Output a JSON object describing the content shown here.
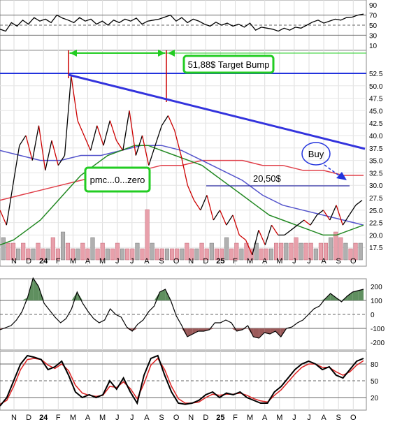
{
  "chart_data": [
    {
      "panel": "rsi",
      "type": "line",
      "y_ticks": [
        "90",
        "70",
        "50",
        "30",
        "10"
      ],
      "reference_lines": [
        70,
        50,
        30
      ],
      "ylim": [
        0,
        100
      ],
      "values": [
        42,
        38,
        55,
        48,
        60,
        52,
        65,
        58,
        62,
        55,
        70,
        64,
        60,
        55,
        65,
        58,
        62,
        52,
        58,
        50,
        60,
        55,
        62,
        58,
        64,
        52,
        58,
        60,
        62,
        66,
        70,
        58,
        65,
        55,
        62,
        58,
        52,
        48,
        56,
        50,
        54,
        48,
        52,
        46,
        54,
        40,
        46,
        44,
        42,
        38,
        44,
        40,
        46,
        44,
        50,
        56,
        60,
        54,
        58,
        62,
        60,
        65,
        66,
        70,
        72
      ]
    },
    {
      "panel": "price",
      "type": "line",
      "y_ticks": [
        "52.5",
        "50.0",
        "47.5",
        "45.0",
        "42.5",
        "40.0",
        "37.5",
        "35.0",
        "32.5",
        "30.0",
        "27.5",
        "25.0",
        "22.5",
        "20.0",
        "17.5"
      ],
      "ylim": [
        14,
        55
      ],
      "x_labels": [
        "N",
        "D",
        "24",
        "F",
        "M",
        "A",
        "M",
        "J",
        "J",
        "A",
        "S",
        "O",
        "N",
        "D",
        "25",
        "F",
        "M",
        "A",
        "M",
        "J",
        "J",
        "A",
        "S",
        "O"
      ],
      "price": [
        25,
        22,
        30,
        38,
        40,
        35,
        42,
        33,
        39,
        34,
        36,
        52,
        43,
        40,
        37,
        42,
        38,
        43,
        39,
        37,
        45,
        36,
        40,
        34,
        38,
        42,
        44,
        41,
        36,
        30,
        27,
        25,
        28,
        23,
        25,
        22,
        24,
        20,
        19,
        16,
        21,
        18,
        22,
        20,
        20,
        21,
        22,
        23,
        22,
        24,
        25,
        23,
        26,
        22,
        24,
        26,
        27
      ],
      "ma_short": [
        18,
        19,
        21,
        23,
        26,
        29,
        32,
        34,
        36,
        37,
        38,
        38,
        37,
        36,
        35,
        34,
        32,
        30,
        28,
        26,
        24,
        23,
        22,
        21,
        20,
        20,
        21,
        22
      ],
      "ma_mid": [
        37,
        36,
        35,
        35,
        36,
        36,
        37,
        38,
        38,
        37,
        35,
        33,
        31,
        28,
        26,
        25,
        24,
        23,
        22
      ],
      "ma_long": [
        27,
        28,
        29,
        30,
        31,
        32,
        33,
        33,
        34,
        34,
        35,
        35,
        35,
        34,
        34,
        33,
        33,
        32,
        32
      ],
      "volume": [
        4,
        3,
        3,
        2,
        3,
        2,
        2,
        3,
        2,
        2,
        4,
        2,
        5,
        3,
        2,
        2,
        3,
        2,
        4,
        2,
        3,
        2,
        2,
        3,
        2,
        2,
        2,
        3,
        2,
        9,
        3,
        2,
        2,
        2,
        2,
        2,
        2,
        3,
        2,
        2,
        3,
        2,
        3,
        2,
        2,
        4,
        2,
        3,
        2,
        3,
        2,
        3,
        2,
        2,
        2,
        3,
        3,
        3,
        3,
        4,
        3,
        3,
        3,
        2,
        3,
        3,
        4,
        5,
        4,
        3,
        2,
        3,
        3
      ],
      "annotations": [
        "51,88$ Target Bump",
        "pmc...0...zero",
        "20,50$",
        "Buy"
      ]
    },
    {
      "panel": "cci",
      "type": "area",
      "y_ticks": [
        "200",
        "100",
        "0",
        "-100",
        "-200"
      ],
      "reference_lines": [
        100,
        0,
        -100
      ],
      "ylim": [
        -250,
        250
      ],
      "values": [
        -110,
        -95,
        -80,
        -40,
        20,
        120,
        260,
        200,
        80,
        30,
        -20,
        -60,
        -30,
        40,
        160,
        80,
        20,
        -30,
        -60,
        -40,
        40,
        0,
        -20,
        -90,
        -120,
        -70,
        -40,
        20,
        60,
        160,
        180,
        100,
        -10,
        -80,
        -160,
        -140,
        -120,
        -120,
        -110,
        -60,
        -60,
        -40,
        -60,
        -120,
        -110,
        -80,
        -160,
        -170,
        -130,
        -140,
        -120,
        -160,
        -100,
        -90,
        -60,
        -40,
        0,
        40,
        60,
        110,
        150,
        120,
        90,
        130,
        160,
        170,
        180
      ]
    },
    {
      "panel": "stochastic",
      "type": "line",
      "y_ticks": [
        "80",
        "50",
        "20"
      ],
      "reference_lines": [
        80,
        50,
        20
      ],
      "ylim": [
        0,
        100
      ],
      "fast": [
        5,
        20,
        50,
        80,
        95,
        92,
        88,
        70,
        75,
        85,
        60,
        30,
        20,
        25,
        20,
        25,
        50,
        35,
        55,
        30,
        10,
        60,
        90,
        95,
        60,
        30,
        10,
        8,
        10,
        15,
        25,
        30,
        20,
        28,
        25,
        30,
        20,
        15,
        10,
        10,
        30,
        40,
        55,
        70,
        80,
        85,
        80,
        70,
        75,
        60,
        55,
        70,
        85,
        90
      ],
      "slow": [
        8,
        15,
        40,
        70,
        88,
        90,
        88,
        78,
        72,
        80,
        68,
        42,
        28,
        24,
        22,
        24,
        40,
        38,
        48,
        36,
        18,
        45,
        78,
        90,
        70,
        40,
        18,
        10,
        10,
        12,
        20,
        26,
        24,
        26,
        26,
        28,
        24,
        18,
        14,
        12,
        24,
        34,
        48,
        62,
        74,
        80,
        80,
        74,
        74,
        66,
        60,
        66,
        78,
        86
      ]
    }
  ]
}
